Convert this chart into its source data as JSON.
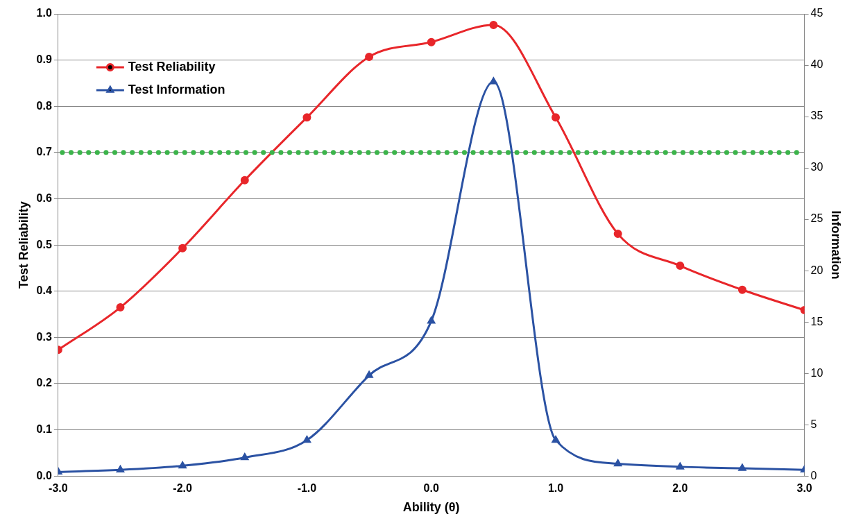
{
  "chart_data": {
    "type": "line",
    "xlabel": "Ability (θ)",
    "ylabel": "Test Reliability",
    "y2label": "Information",
    "x": [
      -3,
      -2.5,
      -2,
      -1.5,
      -1,
      -0.5,
      0,
      0.5,
      1,
      1.5,
      2,
      2.5,
      3
    ],
    "series": [
      {
        "name": "Test Reliability",
        "color": "#e8262a",
        "marker": "circle",
        "values": [
          0.273,
          0.365,
          0.493,
          0.64,
          0.776,
          0.907,
          0.939,
          0.976,
          0.776,
          0.524,
          0.455,
          0.403,
          0.359
        ]
      },
      {
        "name": "Test Information",
        "color": "#2b52a3",
        "marker": "triangle",
        "axis": "y2",
        "values": [
          0.4,
          0.6,
          1.0,
          1.8,
          3.5,
          9.8,
          15.1,
          38.4,
          3.5,
          1.2,
          0.9,
          0.75,
          0.6
        ]
      }
    ],
    "xlim": [
      -3,
      3
    ],
    "xticks": [
      {
        "value": -3,
        "label": "-3.0"
      },
      {
        "value": -2,
        "label": "-2.0"
      },
      {
        "value": -1,
        "label": "-1.0"
      },
      {
        "value": 0,
        "label": "0.0"
      },
      {
        "value": 1,
        "label": "1.0"
      },
      {
        "value": 2,
        "label": "2.0"
      },
      {
        "value": 3,
        "label": "3.0"
      }
    ],
    "ylim": [
      0,
      1
    ],
    "yticks": [
      {
        "value": 0,
        "label": "0.0"
      },
      {
        "value": 0.1,
        "label": "0.1"
      },
      {
        "value": 0.2,
        "label": "0.2"
      },
      {
        "value": 0.3,
        "label": "0.3"
      },
      {
        "value": 0.4,
        "label": "0.4"
      },
      {
        "value": 0.5,
        "label": "0.5"
      },
      {
        "value": 0.6,
        "label": "0.6"
      },
      {
        "value": 0.7,
        "label": "0.7"
      },
      {
        "value": 0.8,
        "label": "0.8"
      },
      {
        "value": 0.9,
        "label": "0.9"
      },
      {
        "value": 1,
        "label": "1.0"
      }
    ],
    "y2lim": [
      0,
      45
    ],
    "y2ticks": [
      0,
      5,
      10,
      15,
      20,
      25,
      30,
      35,
      40,
      45
    ],
    "ref_lines": [
      {
        "axis": "y",
        "value": 0.7,
        "color": "#3cb44b",
        "line_style": "dotted"
      }
    ],
    "grid": "y",
    "legend": "top left"
  }
}
